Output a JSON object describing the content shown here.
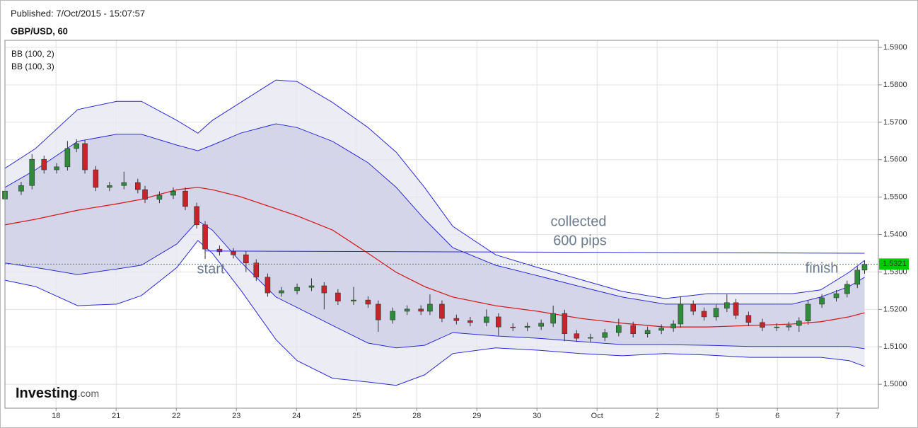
{
  "chart_data": {
    "type": "candlestick",
    "subtitle": "Published: 7/Oct/2015 - 15:07:57",
    "title": "GBP/USD, 60",
    "xlim": [
      -0.85,
      13.68
    ],
    "xticks": [
      {
        "value": 0,
        "label": "18"
      },
      {
        "value": 1,
        "label": "21"
      },
      {
        "value": 2,
        "label": "22"
      },
      {
        "value": 3,
        "label": "23"
      },
      {
        "value": 4,
        "label": "24"
      },
      {
        "value": 5,
        "label": "25"
      },
      {
        "value": 6,
        "label": "28"
      },
      {
        "value": 7,
        "label": "29"
      },
      {
        "value": 8,
        "label": "30"
      },
      {
        "value": 9,
        "label": "Oct"
      },
      {
        "value": 10,
        "label": "2"
      },
      {
        "value": 11,
        "label": "5"
      },
      {
        "value": 12,
        "label": "6"
      },
      {
        "value": 13,
        "label": "7"
      }
    ],
    "ylim": [
      1.4936,
      1.5919
    ],
    "yticks": [
      {
        "value": 1.5,
        "label": "1.5000"
      },
      {
        "value": 1.51,
        "label": "1.5100"
      },
      {
        "value": 1.52,
        "label": "1.5200"
      },
      {
        "value": 1.53,
        "label": "1.5300"
      },
      {
        "value": 1.54,
        "label": "1.5400"
      },
      {
        "value": 1.55,
        "label": "1.5500"
      },
      {
        "value": 1.56,
        "label": "1.5600"
      },
      {
        "value": 1.57,
        "label": "1.5700"
      },
      {
        "value": 1.58,
        "label": "1.5800"
      },
      {
        "value": 1.59,
        "label": "1.5900"
      }
    ],
    "grid": true,
    "up_color": "#2e8b3a",
    "down_color": "#c8232b",
    "x": [
      -0.85,
      -0.58,
      -0.4,
      -0.2,
      0.01,
      0.19,
      0.34,
      0.48,
      0.66,
      0.89,
      1.13,
      1.36,
      1.48,
      1.72,
      1.95,
      2.15,
      2.34,
      2.48,
      2.72,
      2.95,
      3.16,
      3.33,
      3.52,
      3.75,
      4.01,
      4.25,
      4.46,
      4.69,
      4.95,
      5.19,
      5.36,
      5.6,
      5.84,
      6.07,
      6.22,
      6.42,
      6.66,
      6.89,
      7.16,
      7.36,
      7.6,
      7.84,
      8.07,
      8.27,
      8.46,
      8.66,
      8.89,
      9.13,
      9.36,
      9.6,
      9.84,
      10.07,
      10.27,
      10.39,
      10.6,
      10.78,
      10.98,
      11.16,
      11.31,
      11.52,
      11.75,
      11.99,
      12.19,
      12.36,
      12.51,
      12.74,
      12.98,
      13.16,
      13.33,
      13.45
    ],
    "open": [
      1.5495,
      1.5516,
      1.5531,
      1.5601,
      1.5573,
      1.5581,
      1.563,
      1.5643,
      1.5573,
      1.5526,
      1.5531,
      1.5539,
      1.552,
      1.5494,
      1.5505,
      1.5516,
      1.5475,
      1.5426,
      1.5361,
      1.5354,
      1.5346,
      1.5324,
      1.5286,
      1.5244,
      1.525,
      1.5259,
      1.5263,
      1.5244,
      1.5222,
      1.5225,
      1.5214,
      1.5172,
      1.5195,
      1.5201,
      1.5195,
      1.5214,
      1.5176,
      1.517,
      1.5165,
      1.518,
      1.5153,
      1.5152,
      1.5155,
      1.5163,
      1.5189,
      1.5135,
      1.5123,
      1.5125,
      1.5138,
      1.5157,
      1.5135,
      1.5144,
      1.515,
      1.5161,
      1.5214,
      1.5195,
      1.518,
      1.5203,
      1.5218,
      1.5184,
      1.5165,
      1.5152,
      1.5153,
      1.5157,
      1.5169,
      1.5214,
      1.5231,
      1.5242,
      1.5267,
      1.5305
    ],
    "high": [
      1.5526,
      1.5541,
      1.5615,
      1.5611,
      1.5591,
      1.565,
      1.5655,
      1.5653,
      1.5583,
      1.5541,
      1.5568,
      1.5549,
      1.553,
      1.5515,
      1.5526,
      1.5526,
      1.5485,
      1.5436,
      1.5371,
      1.5364,
      1.5356,
      1.5334,
      1.5296,
      1.526,
      1.5269,
      1.5283,
      1.5273,
      1.5254,
      1.526,
      1.5235,
      1.5224,
      1.5205,
      1.5211,
      1.5211,
      1.524,
      1.5224,
      1.5186,
      1.518,
      1.52,
      1.519,
      1.5163,
      1.5165,
      1.5173,
      1.521,
      1.5199,
      1.5145,
      1.5135,
      1.5148,
      1.5175,
      1.5167,
      1.5154,
      1.516,
      1.5171,
      1.5235,
      1.5224,
      1.5205,
      1.5213,
      1.524,
      1.5228,
      1.5194,
      1.5175,
      1.5163,
      1.5167,
      1.5179,
      1.5224,
      1.5241,
      1.5252,
      1.5277,
      1.5315,
      1.5331
    ],
    "low": [
      1.5485,
      1.5506,
      1.5521,
      1.5563,
      1.5563,
      1.5571,
      1.562,
      1.5563,
      1.5516,
      1.5516,
      1.5521,
      1.551,
      1.5484,
      1.5484,
      1.5495,
      1.5465,
      1.5416,
      1.5335,
      1.5344,
      1.5336,
      1.53,
      1.5276,
      1.5234,
      1.5234,
      1.524,
      1.5249,
      1.52,
      1.5212,
      1.5212,
      1.5204,
      1.514,
      1.5162,
      1.5185,
      1.5185,
      1.5185,
      1.5166,
      1.516,
      1.5155,
      1.5155,
      1.513,
      1.5142,
      1.5142,
      1.5145,
      1.5153,
      1.5115,
      1.5113,
      1.5113,
      1.5115,
      1.5128,
      1.5125,
      1.5125,
      1.5134,
      1.514,
      1.5151,
      1.5185,
      1.517,
      1.517,
      1.5193,
      1.5174,
      1.5155,
      1.5142,
      1.5142,
      1.5143,
      1.514,
      1.5159,
      1.5204,
      1.5221,
      1.5232,
      1.5257,
      1.5295
    ],
    "close": [
      1.5516,
      1.5531,
      1.5601,
      1.5573,
      1.5581,
      1.563,
      1.5643,
      1.5573,
      1.5526,
      1.5531,
      1.5539,
      1.552,
      1.5494,
      1.5505,
      1.5516,
      1.5475,
      1.5426,
      1.5361,
      1.5354,
      1.5346,
      1.5324,
      1.5286,
      1.5244,
      1.525,
      1.5259,
      1.5263,
      1.5244,
      1.5222,
      1.5225,
      1.5214,
      1.5172,
      1.5195,
      1.5201,
      1.5195,
      1.5214,
      1.5176,
      1.517,
      1.5165,
      1.518,
      1.5153,
      1.5152,
      1.5155,
      1.5163,
      1.5189,
      1.5135,
      1.5123,
      1.5125,
      1.5138,
      1.5157,
      1.5135,
      1.5144,
      1.515,
      1.5161,
      1.5214,
      1.5195,
      1.518,
      1.5203,
      1.5218,
      1.5184,
      1.5165,
      1.5152,
      1.5153,
      1.5157,
      1.5169,
      1.5214,
      1.5231,
      1.5242,
      1.5267,
      1.5305,
      1.5321
    ],
    "band_x": [
      -0.85,
      -0.34,
      0.36,
      1.01,
      1.42,
      2.01,
      2.36,
      2.6,
      3.07,
      3.66,
      4.01,
      4.6,
      5.19,
      5.66,
      6.13,
      6.6,
      7.31,
      8.01,
      8.72,
      9.42,
      10.13,
      10.84,
      11.54,
      12.25,
      12.72,
      13.19,
      13.45
    ],
    "bands": [
      {
        "name": "BB (100, 2)",
        "color": "#2a2ad8",
        "fill": "#cdcee6",
        "middle_color": "#d62020",
        "upper": [
          1.5526,
          1.5573,
          1.5649,
          1.5668,
          1.5668,
          1.5639,
          1.5624,
          1.5639,
          1.5671,
          1.5696,
          1.5686,
          1.5649,
          1.5592,
          1.5526,
          1.5441,
          1.5365,
          1.5318,
          1.529,
          1.5261,
          1.5233,
          1.5214,
          1.5214,
          1.5214,
          1.5214,
          1.5233,
          1.5261,
          1.5286
        ],
        "middle": [
          1.5426,
          1.5441,
          1.5465,
          1.5482,
          1.5494,
          1.552,
          1.5526,
          1.552,
          1.5501,
          1.5469,
          1.545,
          1.5412,
          1.535,
          1.5299,
          1.5261,
          1.5233,
          1.521,
          1.5195,
          1.5176,
          1.5163,
          1.5153,
          1.5153,
          1.5157,
          1.5161,
          1.5167,
          1.518,
          1.5191
        ],
        "lower": [
          1.5324,
          1.5312,
          1.5293,
          1.5308,
          1.5318,
          1.5375,
          1.5437,
          1.5412,
          1.5327,
          1.5233,
          1.5205,
          1.5157,
          1.511,
          1.5097,
          1.5104,
          1.5138,
          1.5129,
          1.5123,
          1.5114,
          1.5106,
          1.5106,
          1.5104,
          1.5101,
          1.5101,
          1.5101,
          1.5101,
          1.5095
        ]
      },
      {
        "name": "BB (100, 3)",
        "color": "#2a2ad8",
        "fill": "#e6e6f2",
        "upper": [
          1.5577,
          1.563,
          1.5734,
          1.5756,
          1.5756,
          1.5705,
          1.5671,
          1.5705,
          1.5753,
          1.5813,
          1.5809,
          1.5753,
          1.5686,
          1.562,
          1.5526,
          1.5422,
          1.5346,
          1.5312,
          1.528,
          1.5248,
          1.5229,
          1.5242,
          1.5242,
          1.5242,
          1.5252,
          1.5299,
          1.5331
        ],
        "lower": [
          1.5278,
          1.5261,
          1.521,
          1.5214,
          1.5237,
          1.5312,
          1.5384,
          1.535,
          1.5252,
          1.5119,
          1.5063,
          1.5016,
          1.5006,
          1.4997,
          1.5025,
          1.5082,
          1.5097,
          1.5091,
          1.5082,
          1.5076,
          1.5082,
          1.5078,
          1.5072,
          1.5072,
          1.5072,
          1.5063,
          1.5048
        ]
      }
    ],
    "level_line": {
      "x": [
        2.48,
        13.45
      ],
      "values": [
        1.5356,
        1.535
      ],
      "color": "#2a2ad8"
    },
    "last_price": 1.5321,
    "last_price_color": "#00cc00",
    "annotations": [
      "collected",
      "600 pips",
      "start",
      "finish"
    ],
    "logo": {
      "name": "Investing",
      "suffix": ".com"
    }
  }
}
